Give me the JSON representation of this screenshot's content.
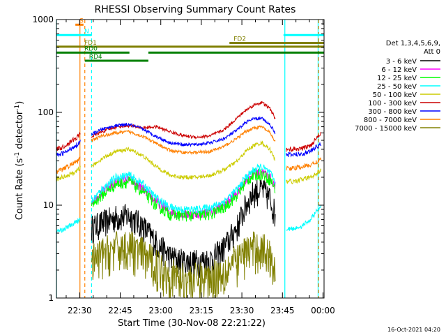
{
  "chart_data": {
    "type": "line",
    "title": "RHESSI Observing Summary Count Rates",
    "xlabel": "Start Time (30-Nov-08 22:21:22)",
    "ylabel_main": "Count Rate (s",
    "ylabel_sup": "-1",
    "ylabel_mid": " detector",
    "ylabel_sup2": "-1",
    "ylabel_end": ")",
    "y_scale": "log",
    "ylim": [
      1,
      1000
    ],
    "xlim_minutes": [
      0,
      99
    ],
    "x_ticks": [
      {
        "label": "22:30",
        "value": 8.6
      },
      {
        "label": "22:45",
        "value": 23.6
      },
      {
        "label": "23:00",
        "value": 38.6
      },
      {
        "label": "23:15",
        "value": 53.6
      },
      {
        "label": "23:30",
        "value": 68.6
      },
      {
        "label": "23:45",
        "value": 83.6
      },
      {
        "label": "00:00",
        "value": 98.6
      }
    ],
    "y_ticks": [
      {
        "label": "1000",
        "value": 1000
      },
      {
        "label": "100",
        "value": 100
      },
      {
        "label": "10",
        "value": 10
      },
      {
        "label": "1",
        "value": 1
      }
    ],
    "legend_header": [
      "Det 1,3,4,5,6,9,",
      "Att 0"
    ],
    "legend_position": "right",
    "series": [
      {
        "name": "3 - 6 keV",
        "color": "#000000",
        "x": [
          13,
          17,
          22,
          27,
          32,
          37,
          42,
          47,
          52,
          57,
          62,
          67,
          70,
          73,
          76,
          79,
          81
        ],
        "y": [
          5.8,
          6.5,
          7.5,
          7.8,
          6.0,
          4.0,
          2.8,
          2.5,
          2.5,
          2.6,
          3.5,
          6.0,
          10,
          14,
          15,
          12,
          8
        ]
      },
      {
        "name": "6 - 12 keV",
        "color": "#ff00ff",
        "x": [
          13,
          17,
          22,
          27,
          32,
          37,
          42,
          47,
          52,
          57,
          62,
          67,
          70,
          73,
          76,
          79,
          81
        ],
        "y": [
          11,
          14,
          18,
          19,
          15,
          11,
          8.5,
          8,
          8,
          8.5,
          10,
          14,
          19,
          22,
          23,
          20,
          16
        ]
      },
      {
        "name": "12 - 25 keV",
        "color": "#00ff00",
        "x": [
          13,
          17,
          22,
          27,
          32,
          37,
          42,
          47,
          52,
          57,
          62,
          67,
          70,
          73,
          76,
          79,
          81
        ],
        "y": [
          10,
          13,
          17,
          18,
          14,
          10,
          8,
          7.8,
          7.8,
          8,
          9.5,
          13,
          18,
          21,
          22,
          19,
          15
        ]
      },
      {
        "name": "25 - 50 keV",
        "color": "#00ffff",
        "x": [
          13,
          17,
          22,
          27,
          32,
          37,
          42,
          47,
          52,
          57,
          62,
          67,
          70,
          73,
          76,
          79,
          81
        ],
        "y": [
          11,
          15,
          20,
          21,
          17,
          12,
          9.5,
          9,
          9,
          9.5,
          11,
          15,
          20,
          24,
          26,
          22,
          18
        ]
      },
      {
        "name": "50 - 100 keV",
        "color": "#cccc00",
        "x": [
          13,
          17,
          22,
          27,
          32,
          37,
          42,
          47,
          52,
          57,
          62,
          67,
          70,
          73,
          76,
          79,
          81
        ],
        "y": [
          26,
          32,
          38,
          40,
          34,
          26,
          21,
          20,
          20,
          21,
          24,
          30,
          38,
          44,
          47,
          40,
          30
        ]
      },
      {
        "name": "100 - 300 keV",
        "color": "#cc0000",
        "x": [
          13,
          17,
          22,
          27,
          32,
          37,
          42,
          47,
          52,
          57,
          62,
          67,
          70,
          73,
          76,
          79,
          81
        ],
        "y": [
          55,
          62,
          70,
          72,
          68,
          70,
          62,
          56,
          54,
          56,
          65,
          88,
          105,
          120,
          128,
          110,
          85
        ]
      },
      {
        "name": "300 - 800 keV",
        "color": "#0000ff",
        "x": [
          13,
          17,
          22,
          27,
          32,
          37,
          42,
          47,
          52,
          57,
          62,
          67,
          70,
          73,
          76,
          79,
          81
        ],
        "y": [
          58,
          66,
          72,
          74,
          66,
          55,
          47,
          45,
          45,
          47,
          52,
          65,
          78,
          85,
          86,
          74,
          60
        ]
      },
      {
        "name": "800 - 7000 keV",
        "color": "#ff8000",
        "x": [
          13,
          17,
          22,
          27,
          32,
          37,
          42,
          47,
          52,
          57,
          62,
          67,
          70,
          73,
          76,
          79,
          81
        ],
        "y": [
          50,
          56,
          60,
          62,
          55,
          46,
          39,
          37,
          37,
          38,
          43,
          53,
          62,
          68,
          70,
          60,
          48
        ]
      },
      {
        "name": "7000 - 15000 keV",
        "color": "#808000",
        "x": [
          13,
          17,
          22,
          27,
          32,
          37,
          42,
          47,
          52,
          57,
          62,
          67,
          70,
          73,
          76,
          79,
          81
        ],
        "y": [
          2.5,
          3,
          3.5,
          3.6,
          3,
          2.3,
          1.8,
          1.6,
          1.6,
          1.7,
          2,
          2.6,
          3.2,
          3.5,
          3.5,
          2.9,
          2.3
        ]
      }
    ],
    "pre_gap": {
      "x": [
        0,
        2,
        4,
        6,
        8,
        9
      ],
      "series": {
        "100 - 300 keV": [
          40,
          42,
          45,
          50,
          55,
          62
        ],
        "300 - 800 keV": [
          34,
          36,
          38,
          42,
          46,
          50
        ],
        "800 - 7000 keV": [
          23,
          24,
          26,
          28,
          30,
          32
        ],
        "50 - 100 keV": [
          19,
          20,
          21,
          22,
          24,
          26
        ],
        "25 - 50 keV": [
          5.2,
          5.4,
          5.8,
          6.2,
          6.8,
          7.0
        ]
      }
    },
    "post_gap": {
      "x": [
        85,
        88,
        91,
        94,
        96,
        98
      ],
      "series": {
        "100 - 300 keV": [
          40,
          40,
          41,
          44,
          52,
          62
        ],
        "300 - 800 keV": [
          35,
          35,
          36,
          38,
          42,
          46
        ],
        "800 - 7000 keV": [
          25,
          25,
          26,
          27,
          29,
          31
        ],
        "50 - 100 keV": [
          18,
          18,
          19,
          20,
          22,
          24
        ],
        "25 - 50 keV": [
          5.5,
          5.6,
          6.0,
          7.0,
          8.5,
          9.5
        ]
      }
    },
    "flags": [
      {
        "label": "S",
        "color": "#ff8000",
        "x1": 7,
        "x2": 10,
        "level": 880
      },
      {
        "label": "N",
        "color": "#00ffff",
        "x1": 0,
        "x2": 13,
        "level": 680
      },
      {
        "label": "",
        "color": "#00ffff",
        "x1": 84,
        "x2": 99,
        "level": 680
      },
      {
        "label": "FD1",
        "color": "#808000",
        "x1": 0,
        "x2": 99,
        "level": 510
      },
      {
        "label": "FD2",
        "color": "#808000",
        "x1": 64,
        "x2": 99,
        "level": 560
      },
      {
        "label": "RD0",
        "color": "#008000",
        "x1": 0,
        "x2": 27,
        "level": 440
      },
      {
        "label": "",
        "color": "#008000",
        "x1": 34,
        "x2": 99,
        "level": 440
      },
      {
        "label": "RD4",
        "color": "#008000",
        "x1": 10.5,
        "x2": 34,
        "level": 360
      }
    ],
    "vlines": [
      {
        "x": 0,
        "color": "#00ffff",
        "style": "solid"
      },
      {
        "x": 8.7,
        "color": "#ff8000",
        "style": "solid"
      },
      {
        "x": 10.5,
        "color": "#ff8000",
        "style": "dashed"
      },
      {
        "x": 13.0,
        "color": "#00ffff",
        "style": "dashed"
      },
      {
        "x": 84.5,
        "color": "#00ffff",
        "style": "solid"
      },
      {
        "x": 96.8,
        "color": "#00ffff",
        "style": "solid"
      },
      {
        "x": 97.0,
        "color": "#ff8000",
        "style": "dashed"
      }
    ],
    "date_stamp": "16-Oct-2021 04:20"
  }
}
